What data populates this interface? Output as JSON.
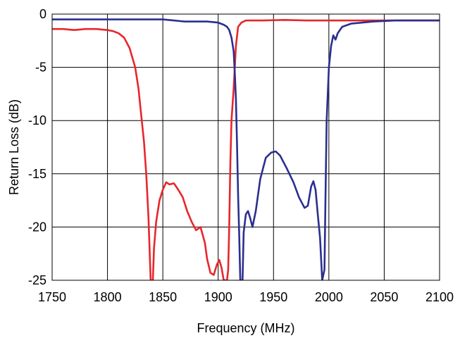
{
  "chart_data": {
    "type": "line",
    "title": "",
    "xlabel": "Frequency (MHz)",
    "ylabel": "Return Loss (dB)",
    "xlim": [
      1750,
      2100
    ],
    "ylim": [
      -25,
      0
    ],
    "x_ticks": [
      1750,
      1800,
      1850,
      1900,
      1950,
      2000,
      2050,
      2100
    ],
    "y_ticks": [
      0,
      -5,
      -10,
      -15,
      -20,
      -25
    ],
    "x_tick_labels": [
      "1750",
      "1800",
      "1850",
      "1900",
      "1950",
      "2000",
      "2050",
      "2100"
    ],
    "y_tick_labels": [
      "0",
      "-5",
      "-10",
      "-15",
      "-20",
      "-25"
    ],
    "grid": true,
    "legend": "none",
    "series": [
      {
        "color": "#e8262b",
        "points": [
          [
            1750,
            -1.4
          ],
          [
            1760,
            -1.4
          ],
          [
            1770,
            -1.5
          ],
          [
            1780,
            -1.4
          ],
          [
            1790,
            -1.4
          ],
          [
            1800,
            -1.5
          ],
          [
            1805,
            -1.6
          ],
          [
            1810,
            -1.8
          ],
          [
            1815,
            -2.2
          ],
          [
            1820,
            -3.2
          ],
          [
            1825,
            -5.0
          ],
          [
            1828,
            -7.0
          ],
          [
            1830,
            -9.0
          ],
          [
            1833,
            -12.0
          ],
          [
            1835,
            -15.0
          ],
          [
            1837,
            -19.0
          ],
          [
            1838,
            -22.0
          ],
          [
            1839,
            -25.0
          ],
          [
            1841,
            -25.0
          ],
          [
            1842,
            -22.0
          ],
          [
            1844,
            -19.5
          ],
          [
            1847,
            -17.5
          ],
          [
            1850,
            -16.5
          ],
          [
            1853,
            -15.8
          ],
          [
            1856,
            -16.0
          ],
          [
            1860,
            -15.9
          ],
          [
            1864,
            -16.5
          ],
          [
            1868,
            -17.2
          ],
          [
            1872,
            -18.5
          ],
          [
            1876,
            -19.5
          ],
          [
            1880,
            -20.3
          ],
          [
            1884,
            -20.0
          ],
          [
            1888,
            -21.5
          ],
          [
            1890,
            -23.0
          ],
          [
            1893,
            -24.3
          ],
          [
            1896,
            -24.5
          ],
          [
            1899,
            -23.5
          ],
          [
            1901,
            -23.1
          ],
          [
            1903,
            -23.8
          ],
          [
            1905,
            -25.0
          ],
          [
            1908,
            -25.0
          ],
          [
            1909,
            -24.0
          ],
          [
            1910,
            -20.0
          ],
          [
            1911,
            -14.0
          ],
          [
            1912,
            -10.0
          ],
          [
            1914,
            -7.0
          ],
          [
            1916,
            -3.0
          ],
          [
            1918,
            -1.2
          ],
          [
            1921,
            -0.8
          ],
          [
            1925,
            -0.6
          ],
          [
            1940,
            -0.6
          ],
          [
            1960,
            -0.55
          ],
          [
            1980,
            -0.6
          ],
          [
            2000,
            -0.6
          ],
          [
            2020,
            -0.6
          ],
          [
            2040,
            -0.6
          ],
          [
            2060,
            -0.6
          ],
          [
            2080,
            -0.6
          ],
          [
            2100,
            -0.6
          ]
        ]
      },
      {
        "color": "#2a2f8f",
        "points": [
          [
            1750,
            -0.5
          ],
          [
            1770,
            -0.5
          ],
          [
            1790,
            -0.5
          ],
          [
            1810,
            -0.5
          ],
          [
            1830,
            -0.5
          ],
          [
            1850,
            -0.5
          ],
          [
            1860,
            -0.6
          ],
          [
            1870,
            -0.7
          ],
          [
            1880,
            -0.7
          ],
          [
            1890,
            -0.7
          ],
          [
            1900,
            -0.8
          ],
          [
            1905,
            -1.0
          ],
          [
            1908,
            -1.2
          ],
          [
            1910,
            -1.5
          ],
          [
            1912,
            -2.2
          ],
          [
            1914,
            -3.5
          ],
          [
            1915,
            -5.5
          ],
          [
            1916,
            -8.0
          ],
          [
            1917,
            -12.0
          ],
          [
            1918,
            -17.0
          ],
          [
            1919,
            -20.8
          ],
          [
            1920,
            -25.0
          ],
          [
            1922,
            -25.0
          ],
          [
            1923,
            -20.5
          ],
          [
            1925,
            -18.8
          ],
          [
            1927,
            -18.5
          ],
          [
            1929,
            -19.2
          ],
          [
            1931,
            -20.0
          ],
          [
            1934,
            -18.5
          ],
          [
            1938,
            -15.5
          ],
          [
            1943,
            -13.5
          ],
          [
            1948,
            -13.0
          ],
          [
            1952,
            -12.9
          ],
          [
            1956,
            -13.3
          ],
          [
            1962,
            -14.5
          ],
          [
            1968,
            -15.8
          ],
          [
            1973,
            -17.2
          ],
          [
            1978,
            -18.2
          ],
          [
            1981,
            -18.0
          ],
          [
            1984,
            -16.2
          ],
          [
            1986,
            -15.7
          ],
          [
            1988,
            -16.5
          ],
          [
            1990,
            -18.8
          ],
          [
            1992,
            -21.0
          ],
          [
            1994,
            -25.0
          ],
          [
            1996,
            -24.0
          ],
          [
            1997,
            -17.0
          ],
          [
            1998,
            -10.0
          ],
          [
            2000,
            -5.0
          ],
          [
            2002,
            -3.0
          ],
          [
            2004,
            -2.0
          ],
          [
            2006,
            -2.4
          ],
          [
            2008,
            -1.8
          ],
          [
            2012,
            -1.2
          ],
          [
            2020,
            -0.9
          ],
          [
            2040,
            -0.7
          ],
          [
            2060,
            -0.6
          ],
          [
            2080,
            -0.6
          ],
          [
            2100,
            -0.6
          ]
        ]
      }
    ]
  }
}
